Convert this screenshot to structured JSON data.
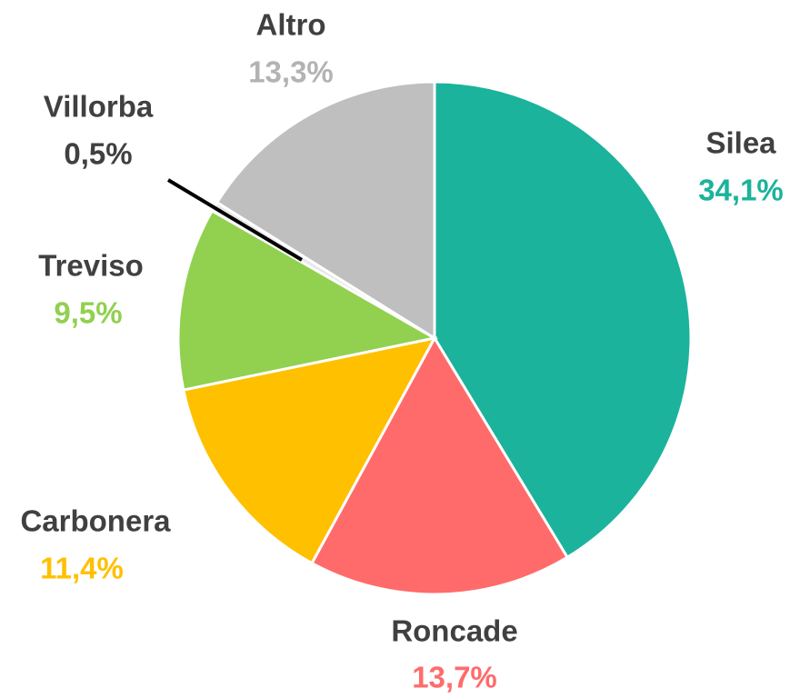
{
  "chart_data": {
    "type": "pie",
    "categories": [
      "Silea",
      "Roncade",
      "Carbonera",
      "Treviso",
      "Villorba",
      "Altro"
    ],
    "values": [
      34.1,
      13.7,
      11.4,
      9.5,
      0.5,
      13.3
    ],
    "value_labels": [
      "34,1%",
      "13,7%",
      "11,4%",
      "9,5%",
      "0,5%",
      "13,3%"
    ],
    "colors": [
      "#1bb39b",
      "#ff6b6b",
      "#ffc000",
      "#92d050",
      "#e8e8e8",
      "#bfbfbf"
    ],
    "label_colors": [
      "#1bb39b",
      "#ff6b6b",
      "#ffc000",
      "#92d050",
      "#404040",
      "#b3b3b3"
    ]
  }
}
